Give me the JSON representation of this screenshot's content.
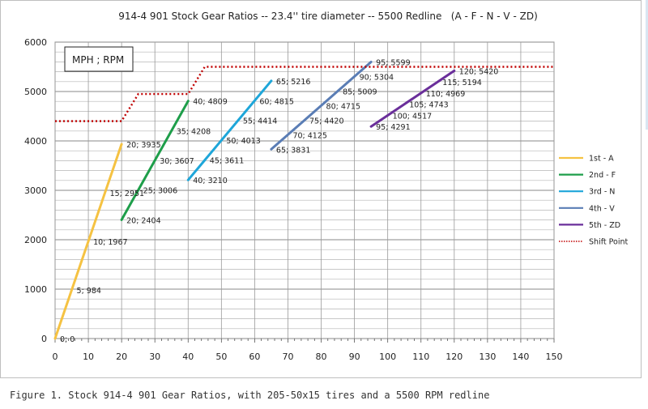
{
  "caption": "Figure 1. Stock 914-4 901 Gear Ratios, with 205-50x15 tires and a 5500 RPM redline",
  "chart_data": {
    "type": "line",
    "title": "914-4 901 Stock Gear Ratios -- 23.4'' tire diameter -- 5500 Redline   (A - F - N - V - ZD)",
    "units_box": "MPH ; RPM",
    "xlabel": "",
    "ylabel": "",
    "xlim": [
      0,
      150
    ],
    "ylim": [
      0,
      6000
    ],
    "x_ticks": [
      0,
      10,
      20,
      30,
      40,
      50,
      60,
      70,
      80,
      90,
      100,
      110,
      120,
      130,
      140,
      150
    ],
    "y_ticks": [
      0,
      1000,
      2000,
      3000,
      4000,
      5000,
      6000
    ],
    "grid": true,
    "legend_position": "right",
    "series": [
      {
        "name": "1st - A",
        "color": "#f5c242",
        "dash": false,
        "x": [
          0,
          20
        ],
        "y": [
          0,
          3935
        ],
        "labels": [
          {
            "x": 0,
            "y": 0,
            "text": "0; 0"
          },
          {
            "x": 5,
            "y": 984,
            "text": "5; 984"
          },
          {
            "x": 10,
            "y": 1967,
            "text": "10; 1967"
          },
          {
            "x": 15,
            "y": 2951,
            "text": "15; 2951"
          },
          {
            "x": 20,
            "y": 3935,
            "text": "20; 3935"
          }
        ]
      },
      {
        "name": "2nd - F",
        "color": "#1e9e4a",
        "dash": false,
        "x": [
          20,
          40
        ],
        "y": [
          2404,
          4809
        ],
        "labels": [
          {
            "x": 20,
            "y": 2404,
            "text": "20; 2404"
          },
          {
            "x": 25,
            "y": 3006,
            "text": "25; 3006"
          },
          {
            "x": 30,
            "y": 3607,
            "text": "30; 3607"
          },
          {
            "x": 35,
            "y": 4208,
            "text": "35; 4208"
          },
          {
            "x": 40,
            "y": 4809,
            "text": "40; 4809"
          }
        ]
      },
      {
        "name": "3rd - N",
        "color": "#1ea6d9",
        "dash": false,
        "x": [
          40,
          65
        ],
        "y": [
          3210,
          5216
        ],
        "labels": [
          {
            "x": 40,
            "y": 3210,
            "text": "40; 3210"
          },
          {
            "x": 45,
            "y": 3611,
            "text": "45; 3611"
          },
          {
            "x": 50,
            "y": 4013,
            "text": "50; 4013"
          },
          {
            "x": 55,
            "y": 4414,
            "text": "55; 4414"
          },
          {
            "x": 60,
            "y": 4815,
            "text": "60; 4815"
          },
          {
            "x": 65,
            "y": 5216,
            "text": "65; 5216"
          }
        ]
      },
      {
        "name": "4th - V",
        "color": "#5a7db5",
        "dash": false,
        "x": [
          65,
          95
        ],
        "y": [
          3831,
          5599
        ],
        "labels": [
          {
            "x": 65,
            "y": 3831,
            "text": "65; 3831"
          },
          {
            "x": 70,
            "y": 4125,
            "text": "70; 4125"
          },
          {
            "x": 75,
            "y": 4420,
            "text": "75; 4420"
          },
          {
            "x": 80,
            "y": 4715,
            "text": "80; 4715"
          },
          {
            "x": 85,
            "y": 5009,
            "text": "85; 5009"
          },
          {
            "x": 90,
            "y": 5304,
            "text": "90; 5304"
          },
          {
            "x": 95,
            "y": 5599,
            "text": "95; 5599"
          }
        ]
      },
      {
        "name": "5th - ZD",
        "color": "#6a2e9a",
        "dash": false,
        "x": [
          95,
          120
        ],
        "y": [
          4291,
          5420
        ],
        "labels": [
          {
            "x": 95,
            "y": 4291,
            "text": "95; 4291"
          },
          {
            "x": 100,
            "y": 4517,
            "text": "100; 4517"
          },
          {
            "x": 105,
            "y": 4743,
            "text": "105; 4743"
          },
          {
            "x": 110,
            "y": 4969,
            "text": "110; 4969"
          },
          {
            "x": 115,
            "y": 5194,
            "text": "115; 5194"
          },
          {
            "x": 120,
            "y": 5420,
            "text": "120; 5420"
          }
        ]
      },
      {
        "name": "Shift Point",
        "color": "#c00000",
        "dash": true,
        "x": [
          0,
          20,
          25,
          40,
          45,
          150
        ],
        "y": [
          4400,
          4400,
          4950,
          4950,
          5500,
          5500
        ],
        "labels": []
      }
    ]
  }
}
